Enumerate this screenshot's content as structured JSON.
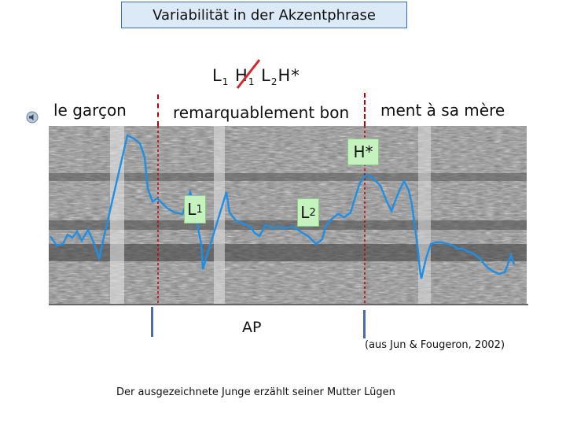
{
  "title": "Variabilität in der Akzentphrase",
  "tonal": {
    "l1": "L",
    "l1_sub": "1",
    "h1": "H",
    "h1_sub": "1",
    "l2": "L",
    "l2_sub": "2",
    "hstar": "H*"
  },
  "words": {
    "w1": "le garçon",
    "w2": "remarquablement bon",
    "w3": "ment à sa mère"
  },
  "labels": {
    "hstar": "H*",
    "l1": "L",
    "l1_sub": "1",
    "l2": "L",
    "l2_sub": "2",
    "ap": "AP"
  },
  "credit": "(aus Jun & Fougeron, 2002)",
  "caption": "Der ausgezeichnete Junge erzählt seiner Mutter Lügen",
  "colors": {
    "pitch": "#1e8fe6",
    "strike": "#d9262c",
    "phrase_bar": "#4a6da8",
    "boundary": "#c00000",
    "label_bg": "#c6f2c0"
  },
  "icons": {
    "speaker": "speaker-icon"
  }
}
